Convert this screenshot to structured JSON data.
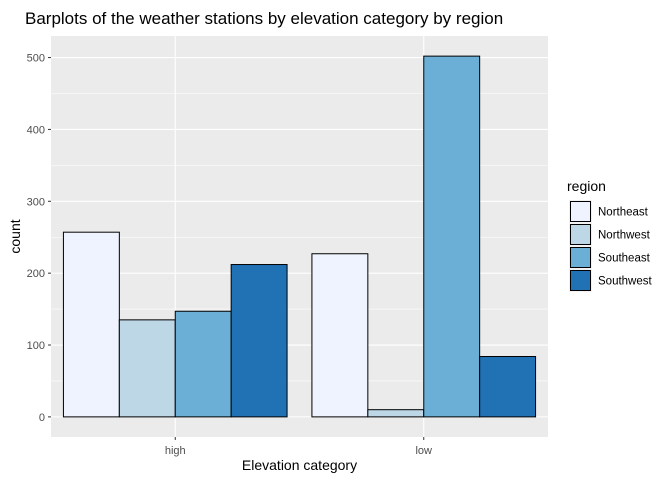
{
  "chart_data": {
    "type": "bar",
    "title": "Barplots of the weather stations by elevation category by region",
    "xlabel": "Elevation category",
    "ylabel": "count",
    "categories": [
      "high",
      "low"
    ],
    "ylim": [
      -28,
      530
    ],
    "yticks": [
      0,
      100,
      200,
      300,
      400,
      500
    ],
    "grid": true,
    "legend_position": "right",
    "legend_title": "region",
    "series": [
      {
        "name": "Northeast",
        "color": "#eff3ff",
        "values": [
          257,
          227
        ]
      },
      {
        "name": "Northwest",
        "color": "#bdd7e7",
        "values": [
          135,
          10
        ]
      },
      {
        "name": "Southeast",
        "color": "#6baed6",
        "values": [
          147,
          502
        ]
      },
      {
        "name": "Southwest",
        "color": "#2171b5",
        "values": [
          212,
          84
        ]
      }
    ],
    "panel_background": "#ebebeb",
    "gridline_color": "#ffffff",
    "bar_outline_color": "#000000"
  }
}
